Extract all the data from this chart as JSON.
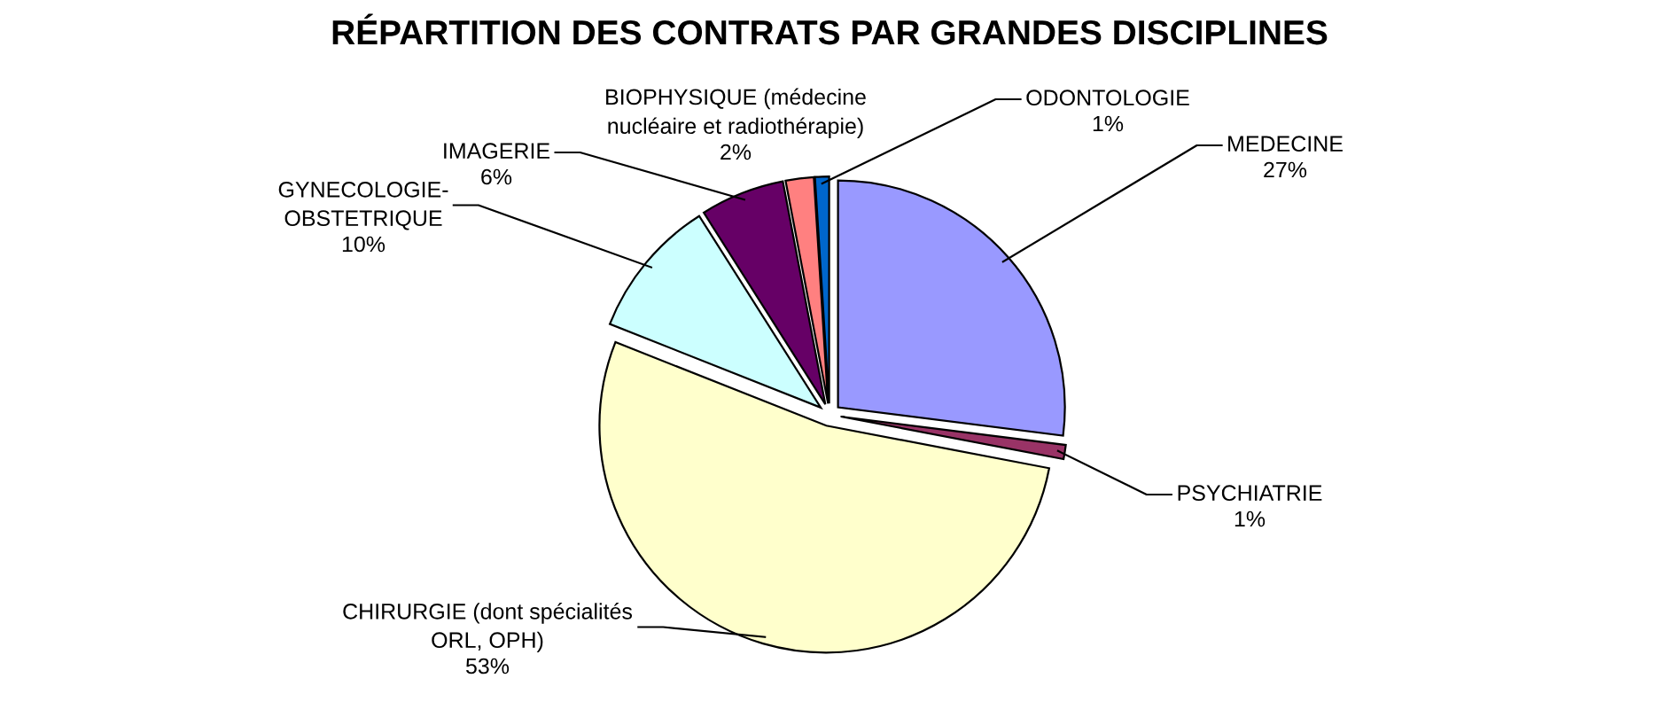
{
  "chart_data": {
    "type": "pie",
    "title": "RÉPARTITION DES CONTRATS PAR GRANDES DISCIPLINES",
    "categories": [
      "MEDECINE",
      "PSYCHIATRIE",
      "CHIRURGIE (dont spécialités\nORL, OPH)",
      "GYNECOLOGIE-\nOBSTETRIQUE",
      "IMAGERIE",
      "BIOPHYSIQUE (médecine\nnucléaire et radiothérapie)",
      "ODONTOLOGIE"
    ],
    "values": [
      27,
      1,
      53,
      10,
      6,
      2,
      1
    ],
    "value_labels": [
      "27%",
      "1%",
      "53%",
      "10%",
      "6%",
      "2%",
      "1%"
    ],
    "colors": [
      "#9999ff",
      "#993366",
      "#ffffcc",
      "#ccffff",
      "#660066",
      "#ff8080",
      "#0066cc"
    ]
  }
}
